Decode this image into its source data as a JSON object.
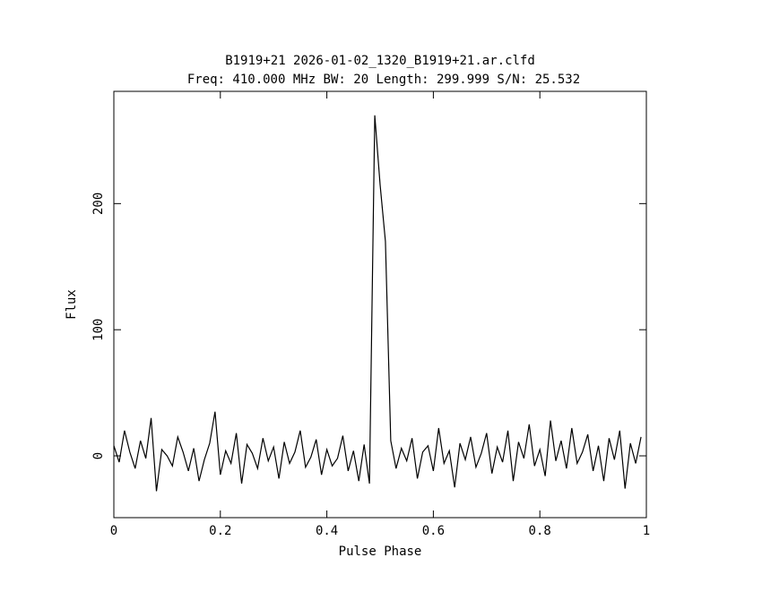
{
  "chart_data": {
    "type": "line",
    "title": "B1919+21 2026-01-02_1320_B1919+21.ar.clfd",
    "subtitle": "Freq: 410.000 MHz BW: 20 Length: 299.999 S/N: 25.532",
    "x_label": "Pulse Phase",
    "y_label": "Flux",
    "color": "#000000",
    "x": [
      0,
      0.01,
      0.02,
      0.03,
      0.04,
      0.05,
      0.06,
      0.07,
      0.08,
      0.09,
      0.1,
      0.11,
      0.12,
      0.13,
      0.14,
      0.15,
      0.16,
      0.17,
      0.18,
      0.19,
      0.2,
      0.21,
      0.22,
      0.23,
      0.24,
      0.25,
      0.26,
      0.27,
      0.28,
      0.29,
      0.3,
      0.31,
      0.32,
      0.33,
      0.34,
      0.35,
      0.36,
      0.37,
      0.38,
      0.39,
      0.4,
      0.41,
      0.42,
      0.43,
      0.44,
      0.45,
      0.46,
      0.47,
      0.48,
      0.49,
      0.5,
      0.51,
      0.52,
      0.53,
      0.54,
      0.55,
      0.56,
      0.57,
      0.58,
      0.59,
      0.6,
      0.61,
      0.62,
      0.63,
      0.64,
      0.65,
      0.66,
      0.67,
      0.68,
      0.69,
      0.7,
      0.71,
      0.72,
      0.73,
      0.74,
      0.75,
      0.76,
      0.77,
      0.78,
      0.79,
      0.8,
      0.81,
      0.82,
      0.83,
      0.84,
      0.85,
      0.86,
      0.87,
      0.88,
      0.89,
      0.9,
      0.91,
      0.92,
      0.93,
      0.94,
      0.95,
      0.96,
      0.97,
      0.98,
      0.99
    ],
    "values": [
      8,
      -5,
      20,
      3,
      -10,
      12,
      -2,
      30,
      -28,
      5,
      0,
      -8,
      15,
      3,
      -12,
      6,
      -20,
      -3,
      10,
      35,
      -15,
      4,
      -6,
      18,
      -22,
      9,
      2,
      -10,
      14,
      -4,
      7,
      -18,
      11,
      -6,
      3,
      20,
      -9,
      -1,
      13,
      -15,
      5,
      -8,
      -2,
      16,
      -12,
      4,
      -20,
      9,
      -22,
      270,
      215,
      170,
      12,
      -10,
      6,
      -4,
      14,
      -18,
      3,
      8,
      -12,
      22,
      -6,
      4,
      -25,
      10,
      -3,
      15,
      -9,
      2,
      18,
      -14,
      7,
      -5,
      20,
      -20,
      11,
      -2,
      25,
      -8,
      5,
      -16,
      28,
      -4,
      12,
      -10,
      22,
      -6,
      3,
      17,
      -12,
      8,
      -20,
      14,
      -3,
      20,
      -26,
      10,
      -6,
      15
    ],
    "xlim": [
      0,
      1
    ],
    "ylim": [
      -49,
      289
    ],
    "xticks": [
      0,
      0.2,
      0.4,
      0.6,
      0.8,
      1
    ],
    "yticks": [
      0,
      100,
      200
    ]
  }
}
